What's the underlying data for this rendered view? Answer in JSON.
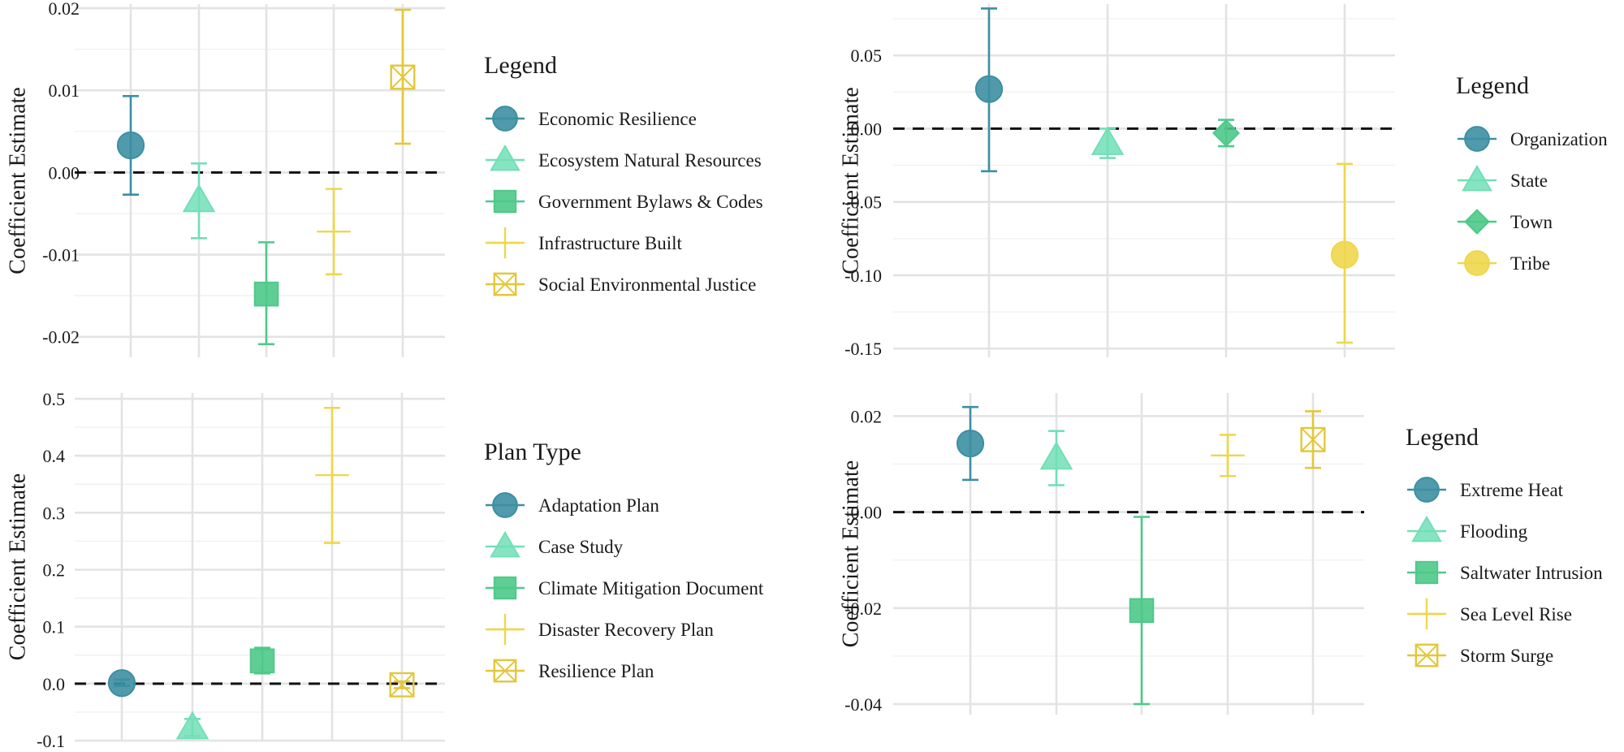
{
  "colors": {
    "c1": "#3d8fa3",
    "c2": "#72dfb7",
    "c3": "#4ec98a",
    "c4": "#eed74c",
    "c5": "#e3c73a"
  },
  "chart_data": [
    {
      "type": "errorbar",
      "ylabel": "Coefficient Estimate",
      "ylim": [
        -0.0225,
        0.0205
      ],
      "yticks": [
        0.02,
        0.01,
        0.0,
        -0.01,
        -0.02
      ],
      "ytick_labels": [
        "0.02",
        "0.01",
        "0.00",
        "-0.01",
        "-0.02"
      ],
      "legend_title": "Legend",
      "series": [
        {
          "name": "Economic Resilience",
          "shape": "circle",
          "color": "#3d8fa3",
          "estimate": 0.0033,
          "lower": -0.0027,
          "upper": 0.0093
        },
        {
          "name": "Ecosystem Natural Resources",
          "shape": "triangle",
          "color": "#72dfb7",
          "estimate": -0.0034,
          "lower": -0.008,
          "upper": 0.0011
        },
        {
          "name": "Government Bylaws & Codes",
          "shape": "square",
          "color": "#4ec98a",
          "estimate": -0.0148,
          "lower": -0.0209,
          "upper": -0.0085
        },
        {
          "name": "Infrastructure Built",
          "shape": "plus",
          "color": "#eed74c",
          "estimate": -0.0072,
          "lower": -0.0124,
          "upper": -0.002
        },
        {
          "name": "Social Environmental Justice",
          "shape": "boxx",
          "color": "#e3c73a",
          "estimate": 0.0116,
          "lower": 0.0035,
          "upper": 0.0198
        }
      ]
    },
    {
      "type": "errorbar",
      "ylabel": "Coefficient Estimate",
      "ylim": [
        -0.156,
        0.085
      ],
      "yticks": [
        0.05,
        0.0,
        -0.05,
        -0.1,
        -0.15
      ],
      "ytick_labels": [
        "0.05",
        "0.00",
        "-0.05",
        "-0.10",
        "-0.15"
      ],
      "legend_title": "Legend",
      "series": [
        {
          "name": "Organization",
          "shape": "circle",
          "color": "#3d8fa3",
          "estimate": 0.027,
          "lower": -0.029,
          "upper": 0.082
        },
        {
          "name": "State",
          "shape": "triangle",
          "color": "#72dfb7",
          "estimate": -0.01,
          "lower": -0.02,
          "upper": 0.0
        },
        {
          "name": "Town",
          "shape": "diamond",
          "color": "#4ec98a",
          "estimate": -0.003,
          "lower": -0.012,
          "upper": 0.006
        },
        {
          "name": "Tribe",
          "shape": "circle",
          "color": "#eed74c",
          "estimate": -0.086,
          "lower": -0.146,
          "upper": -0.024
        }
      ]
    },
    {
      "type": "errorbar",
      "ylabel": "Coefficient Estimate",
      "ylim": [
        -0.1,
        0.51
      ],
      "yticks": [
        0.5,
        0.4,
        0.3,
        0.2,
        0.1,
        0.0,
        -0.1
      ],
      "ytick_labels": [
        "0.5",
        "0.4",
        "0.3",
        "0.2",
        "0.1",
        "0.0",
        "-0.1"
      ],
      "legend_title": "Plan Type",
      "series": [
        {
          "name": "Adaptation Plan",
          "shape": "circle",
          "color": "#3d8fa3",
          "estimate": 0.001,
          "lower": -0.004,
          "upper": 0.007
        },
        {
          "name": "Case Study",
          "shape": "triangle",
          "color": "#72dfb7",
          "estimate": -0.077,
          "lower": -0.092,
          "upper": -0.062
        },
        {
          "name": "Climate Mitigation Document",
          "shape": "square",
          "color": "#4ec98a",
          "estimate": 0.04,
          "lower": 0.018,
          "upper": 0.063
        },
        {
          "name": "Disaster Recovery Plan",
          "shape": "plus",
          "color": "#eed74c",
          "estimate": 0.366,
          "lower": 0.247,
          "upper": 0.484
        },
        {
          "name": "Resilience Plan",
          "shape": "boxx",
          "color": "#e3c73a",
          "estimate": -0.002,
          "lower": -0.008,
          "upper": 0.004
        }
      ]
    },
    {
      "type": "errorbar",
      "ylabel": "Coefficient Estimate",
      "ylim": [
        -0.0422,
        0.0248
      ],
      "yticks": [
        0.02,
        0.0,
        -0.02,
        -0.04
      ],
      "ytick_labels": [
        "0.02",
        "0.00",
        "-0.02",
        "-0.04"
      ],
      "legend_title": "Legend",
      "series": [
        {
          "name": "Extreme Heat",
          "shape": "circle",
          "color": "#3d8fa3",
          "estimate": 0.0143,
          "lower": 0.0067,
          "upper": 0.0219
        },
        {
          "name": "Flooding",
          "shape": "triangle",
          "color": "#72dfb7",
          "estimate": 0.0113,
          "lower": 0.0056,
          "upper": 0.0169
        },
        {
          "name": "Saltwater Intrusion",
          "shape": "square",
          "color": "#4ec98a",
          "estimate": -0.0205,
          "lower": -0.04,
          "upper": -0.001
        },
        {
          "name": "Sea Level Rise",
          "shape": "plus",
          "color": "#eed74c",
          "estimate": 0.0118,
          "lower": 0.0075,
          "upper": 0.0161
        },
        {
          "name": "Storm Surge",
          "shape": "boxx",
          "color": "#e3c73a",
          "estimate": 0.0151,
          "lower": 0.0092,
          "upper": 0.021
        }
      ]
    }
  ]
}
